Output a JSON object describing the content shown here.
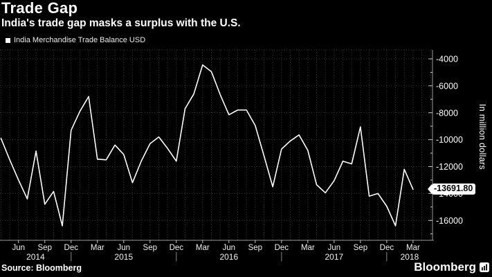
{
  "header": {
    "title": "Trade Gap",
    "subtitle": "India's trade gap masks a surplus with the U.S."
  },
  "footer": {
    "source": "Source: Bloomberg",
    "brand": "Bloomberg"
  },
  "colors": {
    "background": "#000000",
    "line": "#ffffff",
    "grid": "#3d3d3d",
    "badge_background": "#ffffff",
    "badge_text": "#000000"
  },
  "chart_data": {
    "type": "line",
    "title": "Trade Gap",
    "subtitle": "India's trade gap masks a surplus with the U.S.",
    "series_name": "India Merchandise Trade Balance USD",
    "ylabel": "In million dollars",
    "legend_position": "top-left",
    "grid": true,
    "ylim": [
      -17500,
      -3300
    ],
    "y_ticks": [
      -4000,
      -6000,
      -8000,
      -10000,
      -12000,
      -14000,
      -16000
    ],
    "x_tick_months": [
      "Mar",
      "Jun",
      "Sep",
      "Dec"
    ],
    "year_boundary_month": "Dec",
    "year_labels": [
      "2014",
      "2015",
      "2016",
      "2017",
      "2018"
    ],
    "last_value_label": "-13691.80",
    "x": [
      "Apr 2014",
      "May 2014",
      "Jun 2014",
      "Jul 2014",
      "Aug 2014",
      "Sep 2014",
      "Oct 2014",
      "Nov 2014",
      "Dec 2014",
      "Jan 2015",
      "Feb 2015",
      "Mar 2015",
      "Apr 2015",
      "May 2015",
      "Jun 2015",
      "Jul 2015",
      "Aug 2015",
      "Sep 2015",
      "Oct 2015",
      "Nov 2015",
      "Dec 2015",
      "Jan 2016",
      "Feb 2016",
      "Mar 2016",
      "Apr 2016",
      "May 2016",
      "Jun 2016",
      "Jul 2016",
      "Aug 2016",
      "Sep 2016",
      "Oct 2016",
      "Nov 2016",
      "Dec 2016",
      "Jan 2017",
      "Feb 2017",
      "Mar 2017",
      "Apr 2017",
      "May 2017",
      "Jun 2017",
      "Jul 2017",
      "Aug 2017",
      "Sep 2017",
      "Oct 2017",
      "Nov 2017",
      "Dec 2017",
      "Jan 2018",
      "Feb 2018",
      "Mar 2018"
    ],
    "values": [
      -9900,
      -11500,
      -13000,
      -14400,
      -10850,
      -14800,
      -13850,
      -16400,
      -9300,
      -7900,
      -6800,
      -11450,
      -11500,
      -10400,
      -11100,
      -13200,
      -11600,
      -10300,
      -9800,
      -10650,
      -11600,
      -7700,
      -6600,
      -4450,
      -4950,
      -6650,
      -8150,
      -7800,
      -7800,
      -8950,
      -11200,
      -13500,
      -10700,
      -10100,
      -9650,
      -10800,
      -13350,
      -13950,
      -13050,
      -11600,
      -11800,
      -9050,
      -14200,
      -14000,
      -14950,
      -16400,
      -12200,
      -13691.8
    ]
  }
}
